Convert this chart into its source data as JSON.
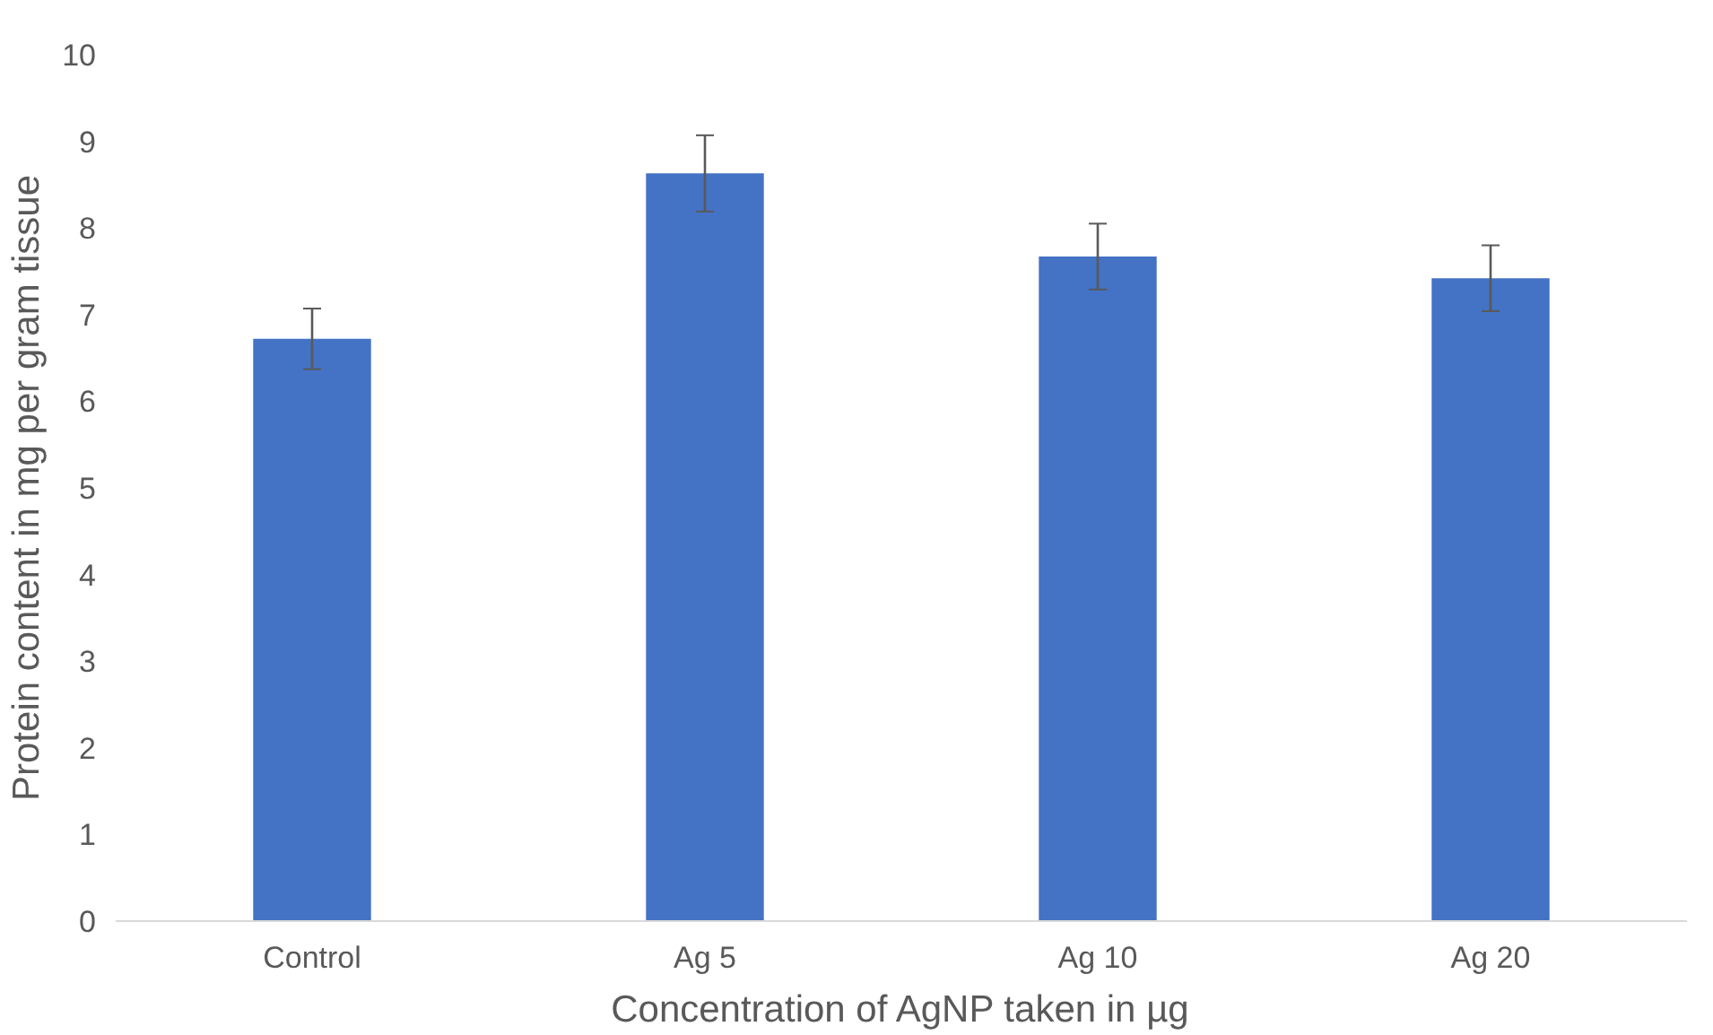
{
  "chart_data": {
    "type": "bar",
    "xlabel": "Concentration of AgNP taken in µg",
    "ylabel": "Protein content in mg per gram tissue",
    "categories": [
      "Control",
      "Ag 5",
      "Ag 10",
      "Ag 20"
    ],
    "values": [
      6.72,
      8.63,
      7.67,
      7.42
    ],
    "errors": [
      0.35,
      0.44,
      0.38,
      0.38
    ],
    "color": "#4472c4",
    "ylim": [
      0,
      10
    ],
    "yticks": [
      0,
      1,
      2,
      3,
      4,
      5,
      6,
      7,
      8,
      9,
      10
    ],
    "grid": false
  }
}
